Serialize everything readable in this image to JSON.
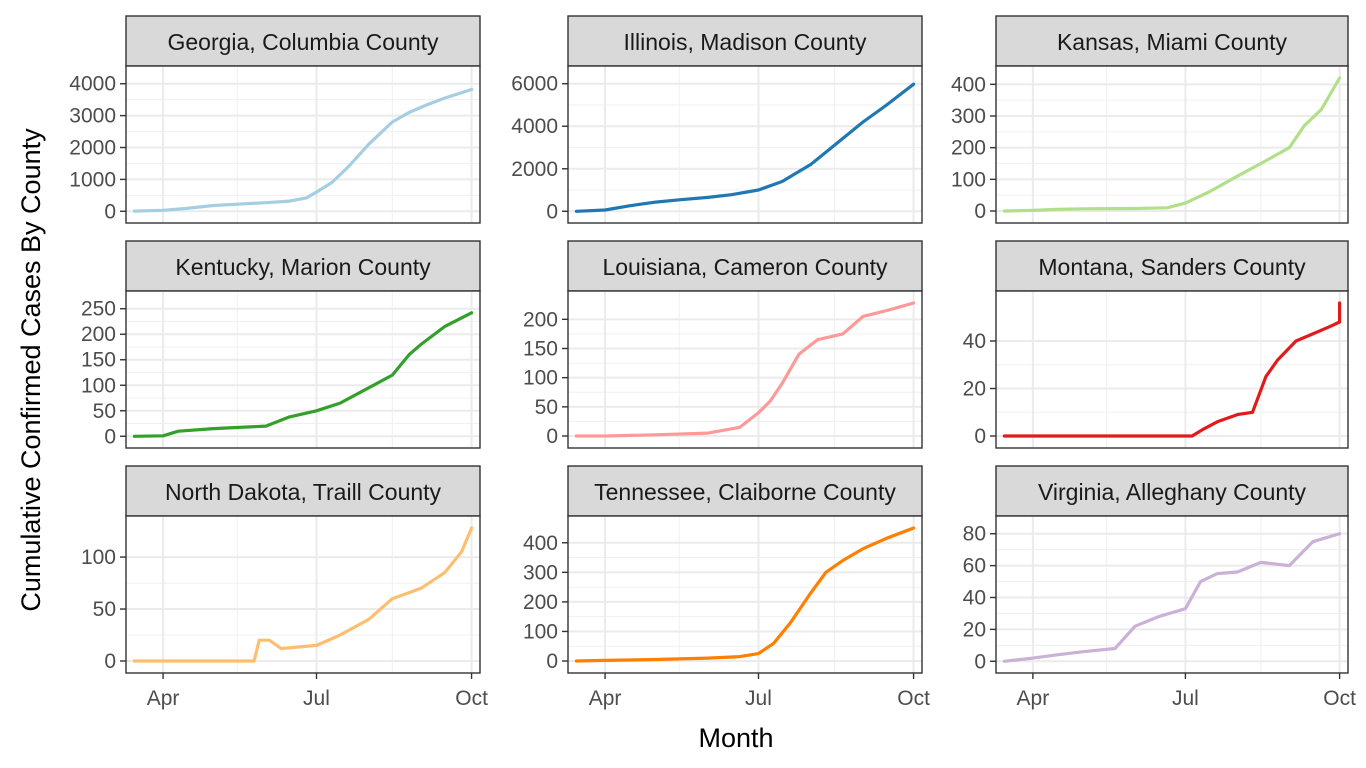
{
  "x_axis_title": "Month",
  "y_axis_title": "Cumulative Confirmed Cases By County",
  "chart_data": [
    {
      "type": "line",
      "title": "Georgia, Columbia County",
      "color": "#A6CEE3",
      "x_tick_labels": [
        "Apr",
        "Jul",
        "Oct"
      ],
      "y_ticks": [
        0,
        1000,
        2000,
        3000,
        4000
      ],
      "ylim": [
        0,
        4000
      ],
      "x": [
        "2020-03-15",
        "2020-04-01",
        "2020-04-15",
        "2020-05-01",
        "2020-05-15",
        "2020-06-01",
        "2020-06-15",
        "2020-06-25",
        "2020-07-01",
        "2020-07-10",
        "2020-07-20",
        "2020-08-01",
        "2020-08-15",
        "2020-08-25",
        "2020-09-05",
        "2020-09-15",
        "2020-10-01"
      ],
      "y": [
        5,
        30,
        90,
        180,
        220,
        270,
        320,
        420,
        600,
        900,
        1400,
        2100,
        2800,
        3100,
        3350,
        3550,
        3820
      ]
    },
    {
      "type": "line",
      "title": "Illinois, Madison County",
      "color": "#1F78B4",
      "x_tick_labels": [
        "Apr",
        "Jul",
        "Oct"
      ],
      "y_ticks": [
        0,
        2000,
        4000,
        6000
      ],
      "ylim": [
        0,
        6000
      ],
      "x": [
        "2020-03-15",
        "2020-04-01",
        "2020-04-15",
        "2020-05-01",
        "2020-05-15",
        "2020-06-01",
        "2020-06-15",
        "2020-07-01",
        "2020-07-15",
        "2020-08-01",
        "2020-08-15",
        "2020-09-01",
        "2020-09-15",
        "2020-10-01"
      ],
      "y": [
        0,
        60,
        250,
        430,
        540,
        650,
        780,
        1000,
        1400,
        2200,
        3100,
        4200,
        5000,
        5980
      ]
    },
    {
      "type": "line",
      "title": "Kansas, Miami County",
      "color": "#B2DF8A",
      "x_tick_labels": [
        "Apr",
        "Jul",
        "Oct"
      ],
      "y_ticks": [
        0,
        100,
        200,
        300,
        400
      ],
      "ylim": [
        0,
        400
      ],
      "x": [
        "2020-03-15",
        "2020-04-01",
        "2020-04-15",
        "2020-05-01",
        "2020-06-01",
        "2020-06-20",
        "2020-07-01",
        "2020-07-15",
        "2020-08-01",
        "2020-08-15",
        "2020-09-01",
        "2020-09-10",
        "2020-09-20",
        "2020-10-01"
      ],
      "y": [
        0,
        2,
        5,
        7,
        8,
        10,
        25,
        60,
        110,
        150,
        200,
        270,
        320,
        420
      ]
    },
    {
      "type": "line",
      "title": "Kentucky, Marion County",
      "color": "#33A02C",
      "x_tick_labels": [
        "Apr",
        "Jul",
        "Oct"
      ],
      "y_ticks": [
        0,
        50,
        100,
        150,
        200,
        250
      ],
      "ylim": [
        0,
        250
      ],
      "x": [
        "2020-03-15",
        "2020-04-01",
        "2020-04-10",
        "2020-05-01",
        "2020-06-01",
        "2020-06-15",
        "2020-07-01",
        "2020-07-15",
        "2020-08-01",
        "2020-08-15",
        "2020-08-25",
        "2020-09-01",
        "2020-09-15",
        "2020-10-01"
      ],
      "y": [
        0,
        1,
        10,
        15,
        20,
        38,
        50,
        65,
        95,
        120,
        160,
        180,
        215,
        242
      ]
    },
    {
      "type": "line",
      "title": "Louisiana, Cameron County",
      "color": "#FB9A99",
      "x_tick_labels": [
        "Apr",
        "Jul",
        "Oct"
      ],
      "y_ticks": [
        0,
        50,
        100,
        150,
        200
      ],
      "ylim": [
        0,
        200
      ],
      "x": [
        "2020-03-15",
        "2020-04-01",
        "2020-05-01",
        "2020-06-01",
        "2020-06-20",
        "2020-07-01",
        "2020-07-08",
        "2020-07-15",
        "2020-07-25",
        "2020-08-05",
        "2020-08-20",
        "2020-09-01",
        "2020-09-15",
        "2020-10-01"
      ],
      "y": [
        0,
        0,
        2,
        5,
        15,
        40,
        60,
        90,
        140,
        165,
        175,
        205,
        215,
        228
      ]
    },
    {
      "type": "line",
      "title": "Montana, Sanders County",
      "color": "#E31A1C",
      "x_tick_labels": [
        "Apr",
        "Jul",
        "Oct"
      ],
      "y_ticks": [
        0,
        20,
        40
      ],
      "ylim": [
        0,
        40
      ],
      "x": [
        "2020-03-15",
        "2020-06-01",
        "2020-07-05",
        "2020-07-12",
        "2020-07-20",
        "2020-08-01",
        "2020-08-10",
        "2020-08-18",
        "2020-08-25",
        "2020-09-05",
        "2020-09-15",
        "2020-09-25",
        "2020-10-01",
        "2020-10-01"
      ],
      "y": [
        0,
        0,
        0,
        3,
        6,
        9,
        10,
        25,
        32,
        40,
        43,
        46,
        48,
        56
      ]
    },
    {
      "type": "line",
      "title": "North Dakota, Traill County",
      "color": "#FDBF6F",
      "x_tick_labels": [
        "Apr",
        "Jul",
        "Oct"
      ],
      "y_ticks": [
        0,
        50,
        100
      ],
      "ylim": [
        0,
        100
      ],
      "x": [
        "2020-03-15",
        "2020-05-01",
        "2020-05-25",
        "2020-05-28",
        "2020-06-03",
        "2020-06-10",
        "2020-07-01",
        "2020-07-15",
        "2020-08-01",
        "2020-08-15",
        "2020-09-01",
        "2020-09-15",
        "2020-09-25",
        "2020-10-01"
      ],
      "y": [
        0,
        0,
        0,
        20,
        20,
        12,
        15,
        25,
        40,
        60,
        70,
        85,
        105,
        128
      ]
    },
    {
      "type": "line",
      "title": "Tennessee, Claiborne County",
      "color": "#FF7F00",
      "x_tick_labels": [
        "Apr",
        "Jul",
        "Oct"
      ],
      "y_ticks": [
        0,
        100,
        200,
        300,
        400
      ],
      "ylim": [
        0,
        400
      ],
      "x": [
        "2020-03-15",
        "2020-04-01",
        "2020-05-01",
        "2020-06-01",
        "2020-06-20",
        "2020-07-01",
        "2020-07-10",
        "2020-07-20",
        "2020-08-01",
        "2020-08-10",
        "2020-08-20",
        "2020-09-01",
        "2020-09-15",
        "2020-10-01"
      ],
      "y": [
        0,
        2,
        5,
        10,
        15,
        25,
        60,
        130,
        230,
        300,
        340,
        380,
        415,
        450
      ]
    },
    {
      "type": "line",
      "title": "Virginia, Alleghany County",
      "color": "#CAB2D6",
      "x_tick_labels": [
        "Apr",
        "Jul",
        "Oct"
      ],
      "y_ticks": [
        0,
        20,
        40,
        60,
        80
      ],
      "ylim": [
        0,
        80
      ],
      "x": [
        "2020-03-15",
        "2020-04-01",
        "2020-04-15",
        "2020-05-01",
        "2020-05-20",
        "2020-06-01",
        "2020-06-15",
        "2020-07-01",
        "2020-07-10",
        "2020-07-20",
        "2020-08-01",
        "2020-08-15",
        "2020-09-01",
        "2020-09-15",
        "2020-10-01"
      ],
      "y": [
        0,
        2,
        4,
        6,
        8,
        22,
        28,
        33,
        50,
        55,
        56,
        62,
        60,
        75,
        80
      ]
    }
  ]
}
